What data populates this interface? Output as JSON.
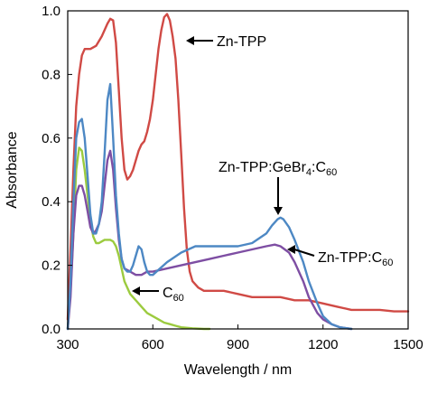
{
  "chart_data": {
    "type": "line",
    "title": "",
    "xlabel": "Wavelength / nm",
    "ylabel": "Absorbance",
    "xlim": [
      300,
      1500
    ],
    "ylim": [
      0,
      1.0
    ],
    "xticks": [
      300,
      600,
      900,
      1200,
      1500
    ],
    "yticks": [
      0.0,
      0.2,
      0.4,
      0.6,
      0.8,
      1.0
    ],
    "grid": false,
    "series": [
      {
        "name": "Zn-TPP",
        "color": "#d04a45",
        "x": [
          300,
          310,
          320,
          330,
          340,
          350,
          360,
          380,
          400,
          420,
          440,
          450,
          460,
          470,
          480,
          490,
          500,
          510,
          520,
          530,
          540,
          550,
          560,
          570,
          580,
          590,
          600,
          610,
          620,
          630,
          640,
          650,
          660,
          670,
          680,
          690,
          700,
          710,
          720,
          730,
          740,
          760,
          780,
          800,
          850,
          900,
          950,
          1000,
          1050,
          1100,
          1150,
          1200,
          1250,
          1300,
          1350,
          1400,
          1450,
          1500
        ],
        "y": [
          0.03,
          0.25,
          0.5,
          0.7,
          0.8,
          0.86,
          0.88,
          0.88,
          0.89,
          0.92,
          0.96,
          0.975,
          0.97,
          0.9,
          0.75,
          0.6,
          0.5,
          0.47,
          0.48,
          0.5,
          0.53,
          0.56,
          0.58,
          0.59,
          0.62,
          0.66,
          0.72,
          0.8,
          0.88,
          0.94,
          0.98,
          0.99,
          0.97,
          0.92,
          0.85,
          0.72,
          0.55,
          0.38,
          0.25,
          0.18,
          0.15,
          0.13,
          0.12,
          0.12,
          0.12,
          0.11,
          0.1,
          0.1,
          0.1,
          0.09,
          0.09,
          0.08,
          0.07,
          0.06,
          0.06,
          0.06,
          0.055,
          0.055
        ]
      },
      {
        "name": "C60",
        "color": "#9ccb3f",
        "x": [
          300,
          310,
          320,
          330,
          340,
          350,
          360,
          370,
          380,
          390,
          400,
          410,
          420,
          430,
          440,
          450,
          460,
          470,
          480,
          490,
          500,
          520,
          540,
          560,
          580,
          600,
          620,
          640,
          660,
          680,
          700,
          740,
          780,
          800
        ],
        "y": [
          0.0,
          0.12,
          0.3,
          0.5,
          0.57,
          0.56,
          0.5,
          0.42,
          0.34,
          0.29,
          0.27,
          0.27,
          0.275,
          0.28,
          0.28,
          0.28,
          0.275,
          0.26,
          0.23,
          0.19,
          0.15,
          0.11,
          0.09,
          0.07,
          0.05,
          0.04,
          0.03,
          0.02,
          0.015,
          0.01,
          0.005,
          0.002,
          0.0,
          0.0
        ]
      },
      {
        "name": "Zn-TPP:C60",
        "color": "#7e4ea3",
        "x": [
          300,
          310,
          320,
          330,
          340,
          350,
          360,
          370,
          380,
          390,
          400,
          410,
          420,
          430,
          440,
          450,
          460,
          470,
          480,
          490,
          500,
          520,
          540,
          560,
          580,
          600,
          650,
          700,
          750,
          800,
          850,
          900,
          950,
          1000,
          1030,
          1050,
          1080,
          1100,
          1130,
          1150,
          1180,
          1200,
          1230,
          1260,
          1300
        ],
        "y": [
          0.0,
          0.1,
          0.3,
          0.42,
          0.45,
          0.45,
          0.42,
          0.37,
          0.32,
          0.3,
          0.31,
          0.33,
          0.37,
          0.45,
          0.53,
          0.56,
          0.5,
          0.38,
          0.28,
          0.22,
          0.19,
          0.18,
          0.17,
          0.17,
          0.18,
          0.18,
          0.19,
          0.2,
          0.21,
          0.22,
          0.23,
          0.24,
          0.25,
          0.26,
          0.265,
          0.26,
          0.24,
          0.21,
          0.15,
          0.1,
          0.05,
          0.03,
          0.015,
          0.005,
          0.0
        ]
      },
      {
        "name": "Zn-TPP:GeBr4:C60",
        "color": "#4d88c4",
        "x": [
          300,
          310,
          320,
          330,
          340,
          350,
          360,
          370,
          380,
          390,
          400,
          410,
          420,
          430,
          440,
          450,
          460,
          470,
          480,
          490,
          500,
          510,
          520,
          530,
          540,
          550,
          560,
          570,
          580,
          590,
          600,
          650,
          700,
          750,
          800,
          850,
          900,
          950,
          1000,
          1020,
          1040,
          1050,
          1060,
          1080,
          1100,
          1130,
          1150,
          1180,
          1200,
          1230,
          1260,
          1300
        ],
        "y": [
          0.0,
          0.15,
          0.4,
          0.6,
          0.65,
          0.66,
          0.6,
          0.48,
          0.36,
          0.3,
          0.3,
          0.33,
          0.4,
          0.55,
          0.72,
          0.77,
          0.6,
          0.42,
          0.3,
          0.22,
          0.19,
          0.18,
          0.18,
          0.2,
          0.23,
          0.26,
          0.25,
          0.21,
          0.18,
          0.17,
          0.17,
          0.21,
          0.24,
          0.26,
          0.26,
          0.26,
          0.26,
          0.27,
          0.3,
          0.325,
          0.345,
          0.35,
          0.345,
          0.32,
          0.28,
          0.21,
          0.15,
          0.08,
          0.04,
          0.015,
          0.005,
          0.0
        ]
      }
    ],
    "annotations": [
      {
        "text": "Zn-TPP",
        "series": "Zn-TPP"
      },
      {
        "text": "C",
        "sub": "60",
        "series": "C60"
      },
      {
        "text": "Zn-TPP:C",
        "sub": "60",
        "series": "Zn-TPP:C60"
      },
      {
        "text": "Zn-TPP:GeBr",
        "sub": "4",
        "text2": ":C",
        "sub2": "60",
        "series": "Zn-TPP:GeBr4:C60"
      }
    ]
  }
}
